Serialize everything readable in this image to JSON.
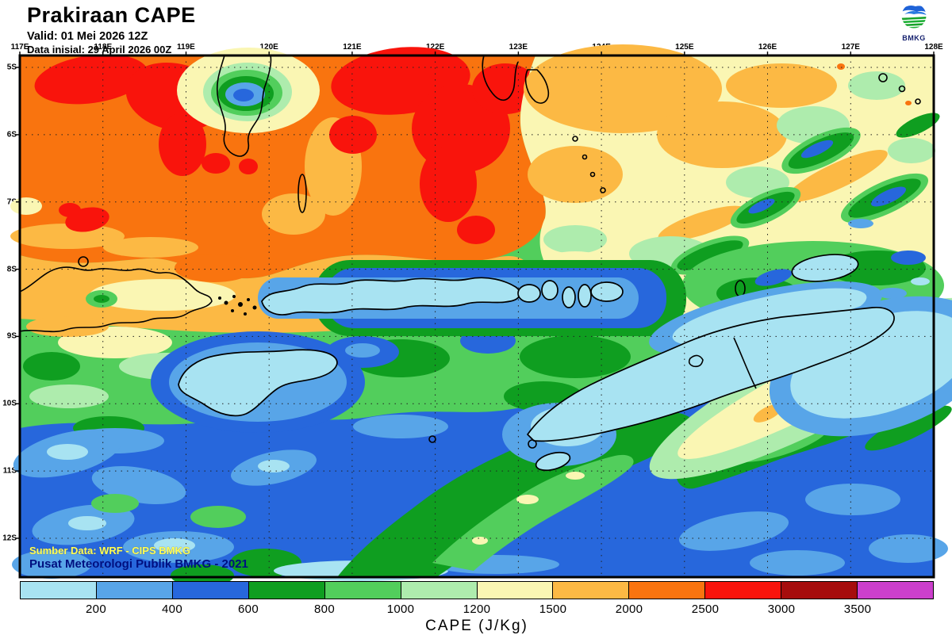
{
  "header": {
    "title": "Prakiraan CAPE",
    "valid": "Valid: 01 Mei 2026 12Z",
    "init": "Data inisial: 29 April 2026 00Z"
  },
  "logo": {
    "text": "BMKG"
  },
  "axes": {
    "lon_ticks": [
      "117E",
      "118E",
      "119E",
      "120E",
      "121E",
      "122E",
      "123E",
      "124E",
      "125E",
      "126E",
      "127E",
      "128E"
    ],
    "lat_ticks": [
      "5S",
      "6S",
      "7S",
      "8S",
      "9S",
      "10S",
      "11S",
      "12S"
    ]
  },
  "credits": {
    "line1": "Sumber Data: WRF - CIPS BMKG",
    "line2": "Pusat Meteorologi Publik BMKG -  2021"
  },
  "legend": {
    "title": "CAPE (J/Kg)",
    "tick_labels": [
      "200",
      "400",
      "600",
      "800",
      "1000",
      "1200",
      "1500",
      "2000",
      "2500",
      "3000",
      "3500"
    ],
    "segments": [
      {
        "range": "< 200",
        "color": "#A8E3F2"
      },
      {
        "range": "200-400",
        "color": "#58A5E8"
      },
      {
        "range": "400-600",
        "color": "#2767DC"
      },
      {
        "range": "600-800",
        "color": "#0F9E20"
      },
      {
        "range": "800-1000",
        "color": "#52CE5C"
      },
      {
        "range": "1000-1200",
        "color": "#AEECAD"
      },
      {
        "range": "1200-1500",
        "color": "#FAF6B3"
      },
      {
        "range": "1500-2000",
        "color": "#FCB944"
      },
      {
        "range": "2000-2500",
        "color": "#F9740F"
      },
      {
        "range": "2500-3000",
        "color": "#F9140C"
      },
      {
        "range": "3000-3500",
        "color": "#A60D0D"
      },
      {
        "range": "> 3500",
        "color": "#CC3FCC"
      }
    ]
  }
}
